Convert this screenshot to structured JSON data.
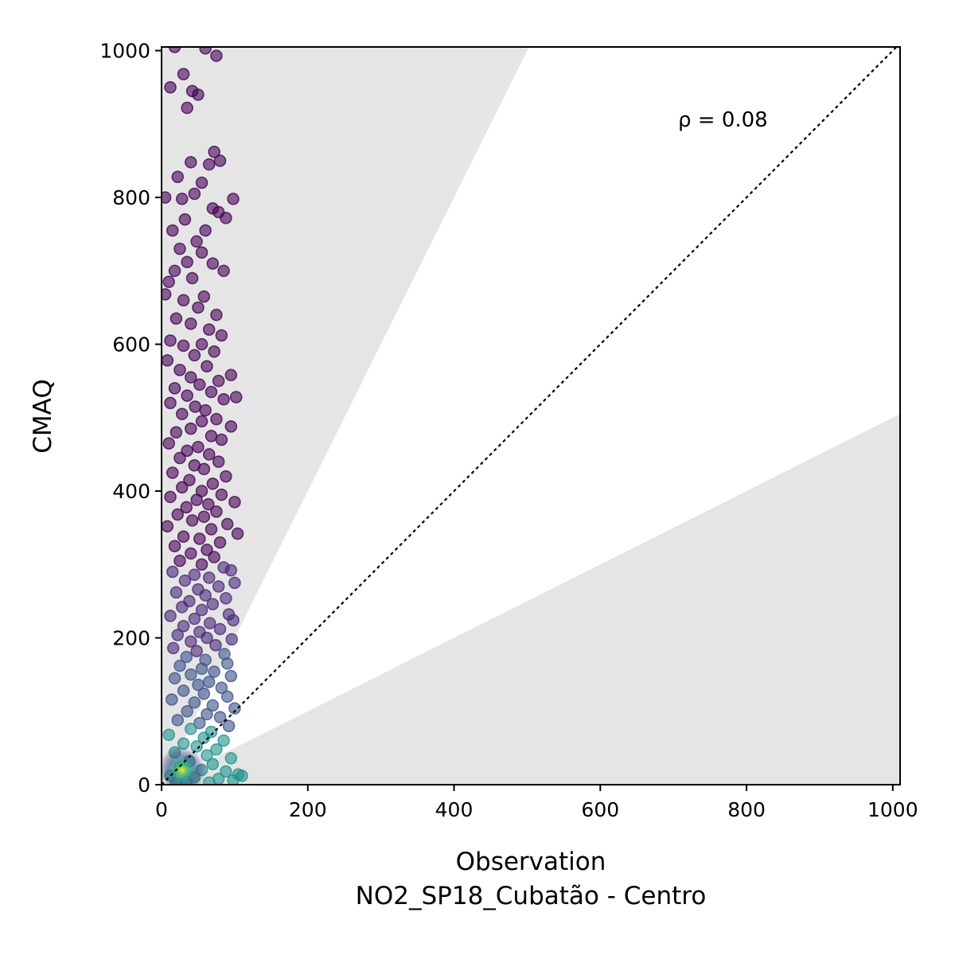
{
  "chart_data": {
    "type": "scatter",
    "xlabel": "Observation",
    "xlabel2": "NO2_SP18_Cubatão - Centro",
    "ylabel": "CMAQ",
    "xlim": [
      0,
      1010
    ],
    "ylim": [
      0,
      1005
    ],
    "xticks": [
      "0",
      "200",
      "400",
      "600",
      "800",
      "1000"
    ],
    "yticks": [
      "0",
      "200",
      "400",
      "600",
      "800",
      "1000"
    ],
    "annotation": "ρ = 0.08",
    "reference_line": {
      "style": "dotted",
      "slope": 1
    },
    "shaded_regions": [
      {
        "from_slope": 2,
        "to": "y-axis"
      },
      {
        "from_slope": 0.5,
        "to": "x-axis"
      }
    ],
    "colormap": "viridis",
    "colors": {
      "low_density": "#440154",
      "mid_density": "#3b528b",
      "high_density": "#fde725",
      "shade": "#e5e5e5"
    },
    "points": [
      [
        18,
        1005
      ],
      [
        60,
        1003
      ],
      [
        75,
        993
      ],
      [
        12,
        950
      ],
      [
        30,
        968
      ],
      [
        42,
        945
      ],
      [
        50,
        940
      ],
      [
        35,
        922
      ],
      [
        72,
        862
      ],
      [
        80,
        850
      ],
      [
        65,
        845
      ],
      [
        40,
        848
      ],
      [
        22,
        828
      ],
      [
        55,
        820
      ],
      [
        45,
        805
      ],
      [
        5,
        800
      ],
      [
        28,
        798
      ],
      [
        98,
        798
      ],
      [
        70,
        785
      ],
      [
        78,
        780
      ],
      [
        88,
        772
      ],
      [
        32,
        770
      ],
      [
        15,
        755
      ],
      [
        60,
        755
      ],
      [
        48,
        740
      ],
      [
        25,
        730
      ],
      [
        55,
        725
      ],
      [
        35,
        712
      ],
      [
        70,
        710
      ],
      [
        85,
        700
      ],
      [
        18,
        700
      ],
      [
        42,
        690
      ],
      [
        10,
        685
      ],
      [
        58,
        665
      ],
      [
        5,
        668
      ],
      [
        30,
        660
      ],
      [
        50,
        650
      ],
      [
        75,
        640
      ],
      [
        20,
        635
      ],
      [
        40,
        628
      ],
      [
        65,
        620
      ],
      [
        82,
        612
      ],
      [
        12,
        605
      ],
      [
        55,
        600
      ],
      [
        30,
        598
      ],
      [
        72,
        590
      ],
      [
        45,
        585
      ],
      [
        8,
        578
      ],
      [
        62,
        570
      ],
      [
        25,
        565
      ],
      [
        95,
        558
      ],
      [
        40,
        555
      ],
      [
        78,
        550
      ],
      [
        52,
        545
      ],
      [
        18,
        540
      ],
      [
        68,
        535
      ],
      [
        35,
        530
      ],
      [
        102,
        528
      ],
      [
        85,
        525
      ],
      [
        12,
        520
      ],
      [
        46,
        515
      ],
      [
        60,
        510
      ],
      [
        28,
        505
      ],
      [
        75,
        498
      ],
      [
        55,
        495
      ],
      [
        95,
        488
      ],
      [
        40,
        485
      ],
      [
        20,
        480
      ],
      [
        68,
        475
      ],
      [
        82,
        470
      ],
      [
        10,
        465
      ],
      [
        50,
        460
      ],
      [
        35,
        455
      ],
      [
        65,
        450
      ],
      [
        25,
        445
      ],
      [
        78,
        440
      ],
      [
        45,
        435
      ],
      [
        58,
        430
      ],
      [
        15,
        425
      ],
      [
        88,
        420
      ],
      [
        38,
        415
      ],
      [
        70,
        410
      ],
      [
        28,
        405
      ],
      [
        55,
        400
      ],
      [
        82,
        395
      ],
      [
        12,
        392
      ],
      [
        48,
        388
      ],
      [
        100,
        385
      ],
      [
        64,
        382
      ],
      [
        34,
        378
      ],
      [
        75,
        372
      ],
      [
        22,
        368
      ],
      [
        58,
        365
      ],
      [
        42,
        360
      ],
      [
        90,
        355
      ],
      [
        8,
        352
      ],
      [
        68,
        348
      ],
      [
        104,
        342
      ],
      [
        30,
        338
      ],
      [
        52,
        335
      ],
      [
        80,
        330
      ],
      [
        18,
        325
      ],
      [
        62,
        320
      ],
      [
        40,
        315
      ],
      [
        72,
        310
      ],
      [
        25,
        305
      ],
      [
        55,
        300
      ],
      [
        85,
        296
      ],
      [
        95,
        292
      ],
      [
        15,
        290
      ],
      [
        45,
        286
      ],
      [
        65,
        282
      ],
      [
        32,
        278
      ],
      [
        100,
        275
      ],
      [
        78,
        270
      ],
      [
        50,
        266
      ],
      [
        20,
        262
      ],
      [
        60,
        258
      ],
      [
        88,
        254
      ],
      [
        38,
        250
      ],
      [
        70,
        246
      ],
      [
        28,
        242
      ],
      [
        55,
        238
      ],
      [
        92,
        232
      ],
      [
        12,
        230
      ],
      [
        45,
        226
      ],
      [
        98,
        224
      ],
      [
        66,
        220
      ],
      [
        30,
        216
      ],
      [
        80,
        212
      ],
      [
        52,
        208
      ],
      [
        22,
        204
      ],
      [
        62,
        200
      ],
      [
        96,
        198
      ],
      [
        40,
        195
      ],
      [
        74,
        190
      ],
      [
        16,
        186
      ],
      [
        48,
        182
      ],
      [
        86,
        178
      ],
      [
        34,
        174
      ],
      [
        60,
        170
      ],
      [
        90,
        165
      ],
      [
        25,
        162
      ],
      [
        55,
        158
      ],
      [
        72,
        154
      ],
      [
        40,
        150
      ],
      [
        95,
        148
      ],
      [
        18,
        145
      ],
      [
        65,
        140
      ],
      [
        50,
        136
      ],
      [
        82,
        132
      ],
      [
        30,
        128
      ],
      [
        58,
        124
      ],
      [
        90,
        120
      ],
      [
        14,
        116
      ],
      [
        45,
        112
      ],
      [
        70,
        108
      ],
      [
        100,
        104
      ],
      [
        35,
        100
      ],
      [
        62,
        96
      ],
      [
        80,
        92
      ],
      [
        22,
        88
      ],
      [
        52,
        84
      ],
      [
        92,
        80
      ],
      [
        40,
        76
      ],
      [
        68,
        72
      ],
      [
        10,
        68
      ],
      [
        58,
        64
      ],
      [
        85,
        60
      ],
      [
        30,
        56
      ],
      [
        48,
        52
      ],
      [
        75,
        48
      ],
      [
        18,
        44
      ],
      [
        62,
        40
      ],
      [
        95,
        36
      ],
      [
        38,
        32
      ],
      [
        70,
        28
      ],
      [
        25,
        24
      ],
      [
        55,
        20
      ],
      [
        88,
        18
      ],
      [
        105,
        14
      ],
      [
        12,
        12
      ],
      [
        45,
        10
      ],
      [
        78,
        8
      ],
      [
        98,
        6
      ],
      [
        34,
        4
      ],
      [
        65,
        3
      ],
      [
        20,
        2
      ],
      [
        110,
        12
      ]
    ]
  }
}
